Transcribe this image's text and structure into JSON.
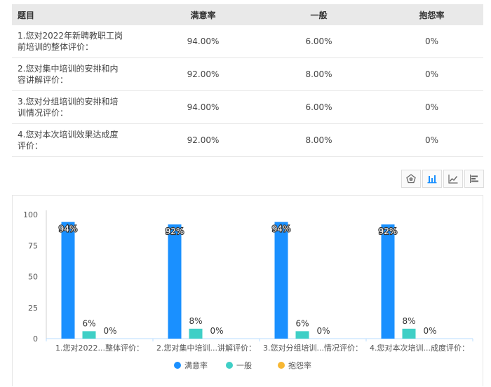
{
  "table": {
    "headers": [
      "题目",
      "满意率",
      "一般",
      "抱怨率"
    ],
    "rows": [
      {
        "question_line1": "1.您对2022年新聘教职工岗",
        "question_line2": "前培训的整体评价：",
        "satisfied": "94.00%",
        "average": "6.00%",
        "complaint": "0%"
      },
      {
        "question_line1": "2.您对集中培训的安排和内",
        "question_line2": "容讲解评价：",
        "satisfied": "92.00%",
        "average": "8.00%",
        "complaint": "0%"
      },
      {
        "question_line1": "3.您对分组培训的安排和培",
        "question_line2": "训情况评价：",
        "satisfied": "94.00%",
        "average": "6.00%",
        "complaint": "0%"
      },
      {
        "question_line1": "4.您对本次培训效果达成度",
        "question_line2": "评价：",
        "satisfied": "92.00%",
        "average": "8.00%",
        "complaint": "0%"
      }
    ]
  },
  "toolbar": {
    "icons": [
      "pentagon-icon",
      "bar-chart-icon",
      "line-chart-icon",
      "horizontal-bar-icon"
    ],
    "accent": "#1a90ff"
  },
  "chart_data": {
    "type": "bar",
    "categories": [
      "1.您对2022...整体评价：",
      "2.您对集中培训...讲解评价：",
      "3.您对分组培训...情况评价：",
      "4.您对本次培训...成度评价："
    ],
    "series": [
      {
        "name": "满意率",
        "color": "#1a90ff",
        "values": [
          94,
          92,
          94,
          92
        ],
        "labels": [
          "94%",
          "92%",
          "94%",
          "92%"
        ]
      },
      {
        "name": "一般",
        "color": "#3fcfc6",
        "values": [
          6,
          8,
          6,
          8
        ],
        "labels": [
          "6%",
          "8%",
          "6%",
          "8%"
        ]
      },
      {
        "name": "抱怨率",
        "color": "#f7b733",
        "values": [
          0,
          0,
          0,
          0
        ],
        "labels": [
          "0%",
          "0%",
          "0%",
          "0%"
        ]
      }
    ],
    "yticks": [
      "0",
      "25",
      "50",
      "75",
      "100"
    ],
    "ylim": [
      0,
      100
    ],
    "grid": false,
    "legend": "bottom-center"
  }
}
